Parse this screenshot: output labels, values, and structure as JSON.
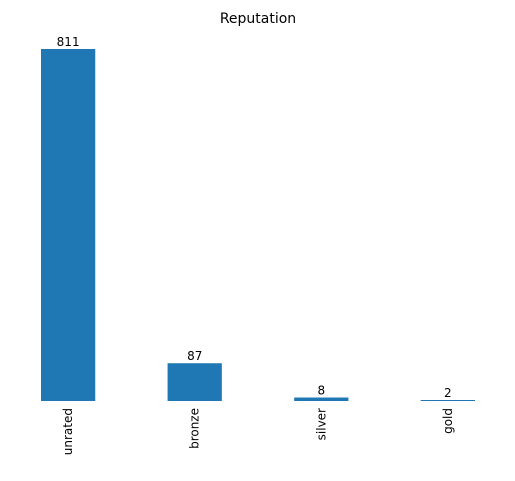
{
  "chart_data": {
    "type": "bar",
    "title": "Reputation",
    "xlabel": "",
    "ylabel": "",
    "categories": [
      "unrated",
      "bronze",
      "silver",
      "gold"
    ],
    "values": [
      811,
      87,
      8,
      2
    ],
    "data_labels": [
      "811",
      "87",
      "8",
      "2"
    ],
    "ylim": [
      0,
      811
    ],
    "bar_color": "#1f77b4",
    "x_tick_rotation": "vertical",
    "grid": false,
    "legend": "none",
    "axes_frame": "hidden"
  }
}
